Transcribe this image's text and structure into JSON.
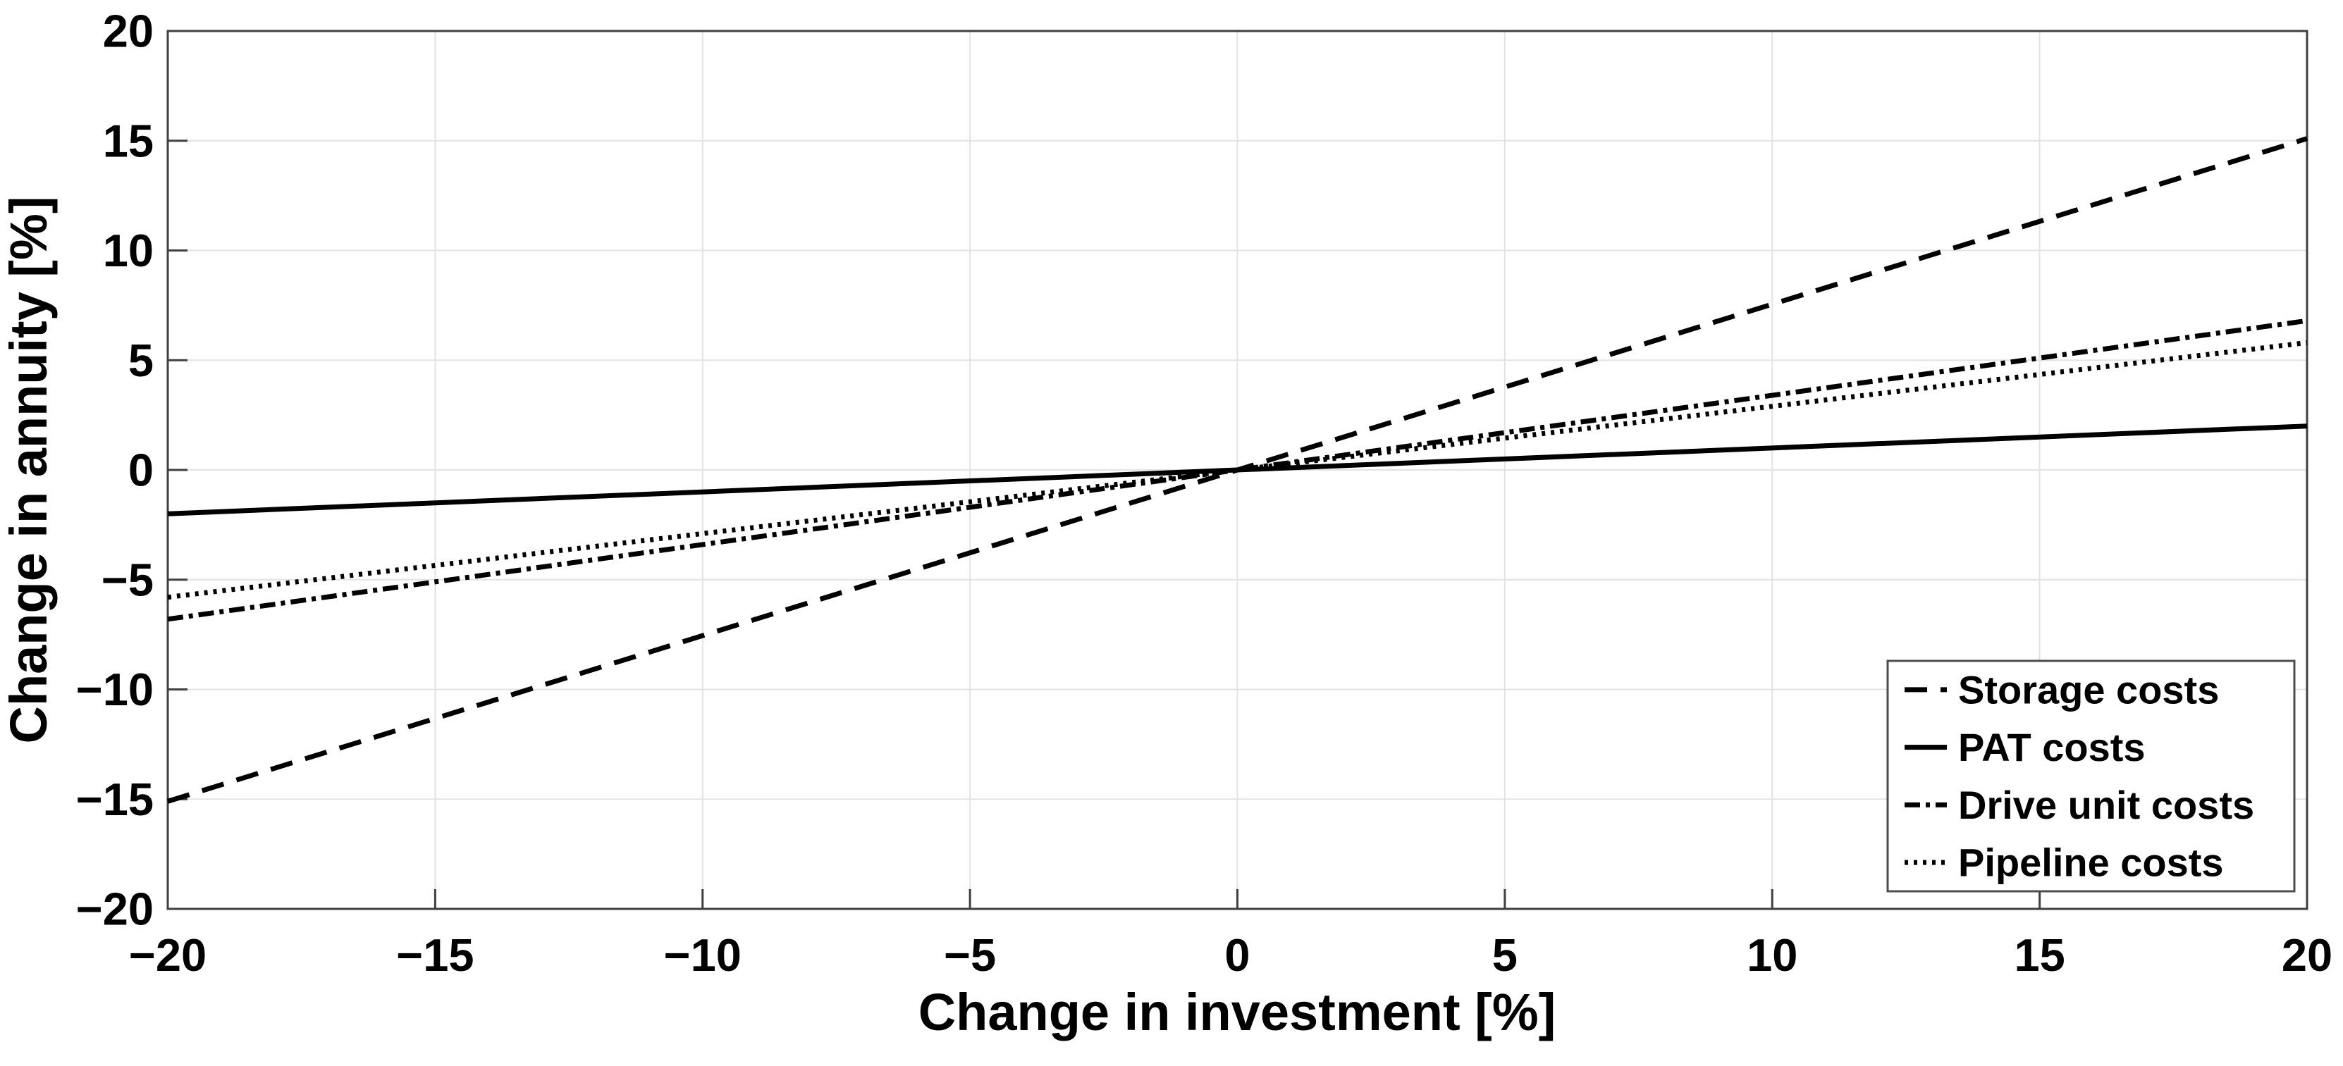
{
  "figure": {
    "background": "#ffffff",
    "axis_color": "#3f3f3f",
    "grid_color": "#e3e3e3",
    "text_color": "#000000",
    "line_color": "#000000",
    "legend_border_color": "#4d4d4d",
    "legend_background": "#ffffff"
  },
  "chart_data": {
    "type": "line",
    "title": "",
    "xlabel": "Change in investment [%]",
    "ylabel": "Change in annuity [%]",
    "xlim": [
      -20,
      20
    ],
    "ylim": [
      -20,
      20
    ],
    "xticks": [
      -20,
      -15,
      -10,
      -5,
      0,
      5,
      10,
      15,
      20
    ],
    "yticks": [
      -20,
      -15,
      -10,
      -5,
      0,
      5,
      10,
      15,
      20
    ],
    "grid": true,
    "legend": {
      "position": "lower-right",
      "entries": [
        "Storage costs",
        "PAT costs",
        "Drive unit costs",
        "Pipeline costs"
      ]
    },
    "x": [
      -20,
      20
    ],
    "series": [
      {
        "name": "Storage costs",
        "line_style": "dashed",
        "color": "#000000",
        "values": [
          -15.1,
          15.1
        ]
      },
      {
        "name": "PAT costs",
        "line_style": "solid",
        "color": "#000000",
        "values": [
          -2.0,
          2.0
        ]
      },
      {
        "name": "Drive unit costs",
        "line_style": "dash-dot",
        "color": "#000000",
        "values": [
          -6.8,
          6.8
        ]
      },
      {
        "name": "Pipeline costs",
        "line_style": "dotted",
        "color": "#000000",
        "values": [
          -5.8,
          5.8
        ]
      }
    ]
  }
}
